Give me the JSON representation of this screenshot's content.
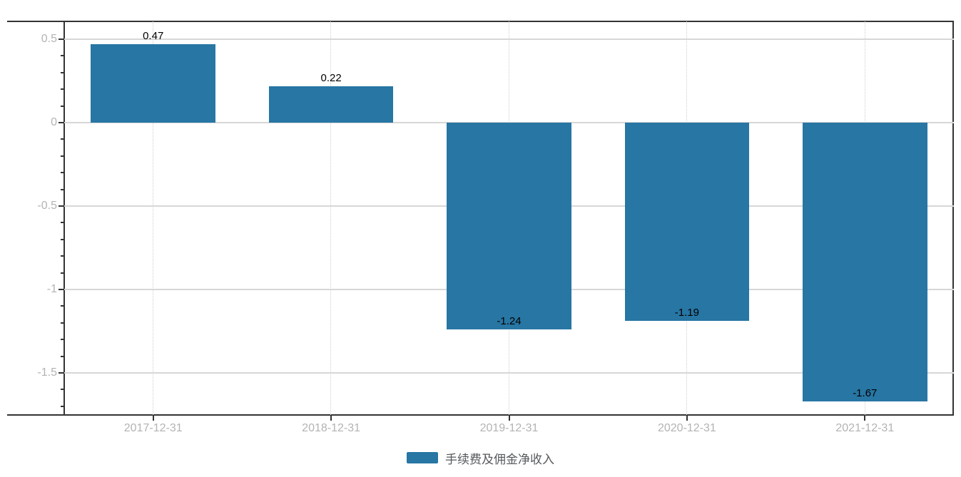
{
  "chart_data": {
    "type": "bar",
    "title": "",
    "xlabel": "",
    "ylabel": "",
    "categories": [
      "2017-12-31",
      "2018-12-31",
      "2019-12-31",
      "2020-12-31",
      "2021-12-31"
    ],
    "series": [
      {
        "name": "手续费及佣金净收入",
        "values": [
          0.47,
          0.22,
          -1.24,
          -1.19,
          -1.67
        ]
      }
    ],
    "value_labels": [
      "0.47",
      "0.22",
      "-1.24",
      "-1.19",
      "-1.67"
    ],
    "y_ticks": [
      0.5,
      0,
      -0.5,
      -1,
      -1.5
    ],
    "y_tick_labels": [
      "0.5",
      "0",
      "-0.5",
      "-1",
      "-1.5"
    ],
    "ylim": [
      -1.75,
      0.61
    ],
    "minor_tick_step": 0.1,
    "grid": true,
    "vertical_grid_style": "dotted",
    "legend_position": "bottom",
    "colors": {
      "bar": "#2776a4",
      "axis": "#333333",
      "grid": "#d7d7d7",
      "dotted_grid": "#cfcfcf",
      "tick_label": "#b3b3b3",
      "value_label": "#000000",
      "legend_text": "#56595c",
      "background": "#ffffff"
    }
  },
  "legend": {
    "label": "手续费及佣金净收入"
  }
}
